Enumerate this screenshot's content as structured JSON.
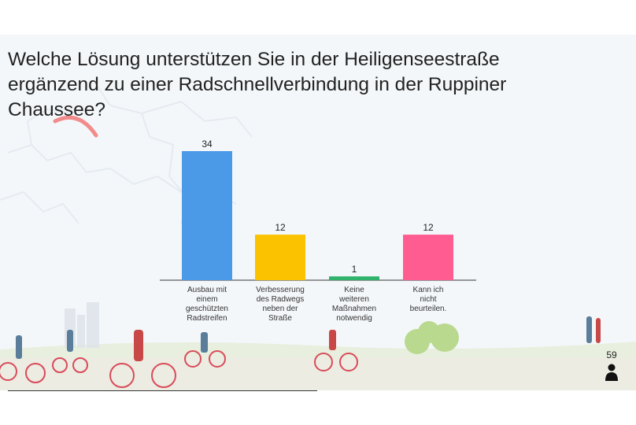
{
  "title": "Welche Lösung unterstützen Sie in der Heiligenseestraße ergänzend zu einer Radschnellverbindung in der Ruppiner Chaussee?",
  "participants": "59",
  "chart_data": {
    "type": "bar",
    "categories": [
      [
        "Ausbau mit",
        "einem",
        "geschützten",
        "Radstreifen"
      ],
      [
        "Verbesserung",
        "des Radwegs",
        "neben der",
        "Straße"
      ],
      [
        "Keine",
        "weiteren",
        "Maßnahmen",
        "notwendig"
      ],
      [
        "Kann ich",
        "nicht",
        "beurteilen."
      ]
    ],
    "values": [
      34,
      12,
      1,
      12
    ],
    "colors": [
      "#4a9ae8",
      "#fbc200",
      "#2fb26a",
      "#ff5d91"
    ],
    "title": "",
    "xlabel": "",
    "ylabel": "",
    "ylim": [
      0,
      34
    ],
    "grid": false
  }
}
